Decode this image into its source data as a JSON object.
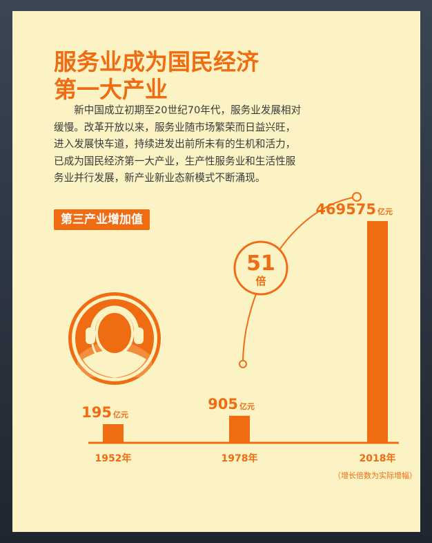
{
  "title_line1": "服务业成为国民经济",
  "title_line2": "第一大产业",
  "body": "新中国成立初期至20世纪70年代，服务业发展相对缓慢。改革开放以来，服务业随市场繁荣而日益兴旺，进入发展快车道，持续进发出前所未有的生机和活力，已成为国民经济第一大产业，生产性服务业和生活性服务业并行发展，新产业新业态新模式不断涌现。",
  "section_label": "第三产业增加值",
  "note": "（增长倍数为实际增幅）",
  "multiplier": {
    "value": "51",
    "unit": "倍"
  },
  "colors": {
    "accent": "#ef6c12",
    "background": "#fbf3c4",
    "text": "#3a3a3a"
  },
  "icon": "headset-service-icon",
  "chart_data": {
    "type": "bar",
    "categories": [
      "1952年",
      "1978年",
      "2018年"
    ],
    "values": [
      195,
      905,
      469575
    ],
    "value_labels": [
      "195",
      "905",
      "469575"
    ],
    "unit": "亿元",
    "title": "第三产业增加值",
    "xlabel": "",
    "ylabel": "",
    "scale": "non-linear (illustrative)",
    "grid": false,
    "legend": "none"
  }
}
